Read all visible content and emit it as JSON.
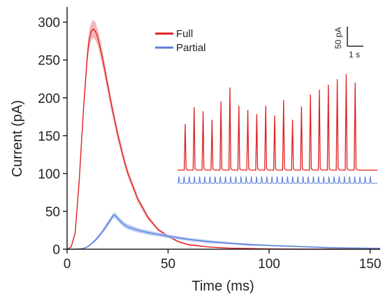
{
  "chart_data": {
    "type": "line",
    "title": "",
    "xlabel": "Time (ms)",
    "ylabel": "Current (pA)",
    "xlim": [
      0,
      155
    ],
    "ylim": [
      0,
      320
    ],
    "xticks": [
      "0",
      "50",
      "100",
      "150"
    ],
    "yticks": [
      "0",
      "50",
      "100",
      "150",
      "200",
      "250",
      "300"
    ],
    "grid": false,
    "legend_position": "top-center",
    "series": [
      {
        "name": "Full",
        "color": "#e02020",
        "band_color": "#f0a0a0",
        "x": [
          0,
          2,
          4,
          6,
          8,
          10,
          11,
          12,
          13,
          14,
          15,
          16,
          18,
          20,
          22,
          25,
          28,
          30,
          35,
          40,
          45,
          50,
          55,
          60,
          70,
          80,
          90,
          100,
          120,
          140,
          155
        ],
        "y": [
          0,
          3,
          22,
          90,
          180,
          255,
          278,
          288,
          291,
          288,
          281,
          271,
          246,
          218,
          190,
          152,
          120,
          101,
          66,
          42,
          26,
          17,
          10,
          6,
          3,
          1.5,
          1,
          0.5,
          0,
          0,
          0
        ],
        "band": [
          0,
          0.5,
          2,
          5,
          8,
          11,
          12,
          12,
          12,
          12,
          11,
          11,
          10,
          9,
          8,
          7,
          6,
          5,
          4,
          3,
          2,
          1.5,
          1,
          1,
          0.5,
          0.5,
          0,
          0,
          0,
          0,
          0
        ]
      },
      {
        "name": "Partial",
        "color": "#5b7fd8",
        "band_color": "#a7bff0",
        "x": [
          0,
          4,
          8,
          10,
          12,
          14,
          16,
          18,
          20,
          22,
          23,
          24,
          26,
          28,
          30,
          35,
          40,
          45,
          50,
          60,
          70,
          80,
          90,
          100,
          110,
          120,
          130,
          140,
          155
        ],
        "y": [
          0,
          0,
          1,
          3,
          7,
          12,
          18,
          25,
          33,
          41,
          45,
          44,
          38,
          33,
          29.5,
          25,
          22,
          19.5,
          17,
          13,
          10,
          8,
          6,
          5,
          4,
          3,
          2,
          1.5,
          1
        ],
        "band": [
          0,
          0,
          0.5,
          1,
          1.5,
          2,
          2.5,
          3,
          3.5,
          3.5,
          3.5,
          3.5,
          3.5,
          3.5,
          3.5,
          3,
          3,
          2.5,
          2.5,
          2,
          2,
          1.5,
          1.5,
          1,
          1,
          1,
          1,
          1,
          1
        ]
      }
    ],
    "inset": {
      "scale_bar_y": "50 pA",
      "scale_bar_x": "1 s",
      "full_trace_spikes": 20,
      "partial_trace_spikes": 38
    }
  }
}
